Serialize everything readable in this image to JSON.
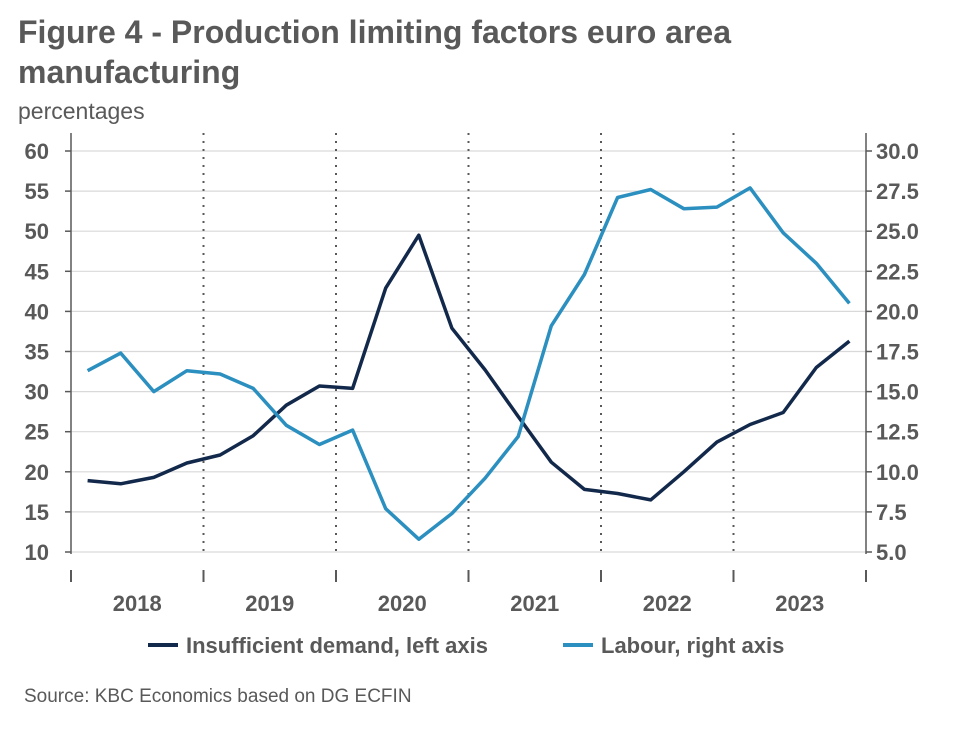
{
  "header": {
    "title": "Figure 4 - Production limiting factors euro area manufacturing",
    "subtitle": "percentages"
  },
  "footer": {
    "source": "Source: KBC Economics based on DG ECFIN"
  },
  "colors": {
    "demand": "#13294b",
    "labour": "#2b8fbf",
    "grid": "#d9d9d9",
    "axis": "#595959"
  },
  "chart_data": {
    "type": "line",
    "title": "Figure 4 - Production limiting factors euro area manufacturing",
    "subtitle": "percentages",
    "x": [
      "2018Q1",
      "2018Q2",
      "2018Q3",
      "2018Q4",
      "2019Q1",
      "2019Q2",
      "2019Q3",
      "2019Q4",
      "2020Q1",
      "2020Q2",
      "2020Q3",
      "2020Q4",
      "2021Q1",
      "2021Q2",
      "2021Q3",
      "2021Q4",
      "2022Q1",
      "2022Q2",
      "2022Q3",
      "2022Q4",
      "2023Q1",
      "2023Q2",
      "2023Q3",
      "2023Q4"
    ],
    "year_labels": [
      "2018",
      "2019",
      "2020",
      "2021",
      "2022",
      "2023"
    ],
    "left_axis": {
      "ylim": [
        10,
        60
      ],
      "ticks": [
        "60",
        "55",
        "50",
        "45",
        "40",
        "35",
        "30",
        "25",
        "20",
        "15",
        "10"
      ]
    },
    "right_axis": {
      "ylim": [
        5.0,
        30.0
      ],
      "ticks": [
        "30.0",
        "27.5",
        "25.0",
        "22.5",
        "20.0",
        "17.5",
        "15.0",
        "12.5",
        "10.0",
        "7.5",
        "5.0"
      ]
    },
    "grid": true,
    "legend_position": "bottom",
    "series": [
      {
        "name": "Insufficient demand, left axis",
        "axis": "left",
        "values": [
          18.9,
          18.5,
          19.3,
          21.1,
          22.1,
          24.5,
          28.3,
          30.7,
          30.4,
          42.9,
          49.5,
          37.9,
          32.7,
          26.9,
          21.2,
          17.8,
          17.3,
          16.5,
          20.0,
          23.7,
          25.9,
          27.4,
          33.0,
          36.3
        ]
      },
      {
        "name": "Labour, right axis",
        "axis": "right",
        "values": [
          16.3,
          17.4,
          15.0,
          16.3,
          16.1,
          15.2,
          12.9,
          11.7,
          12.6,
          7.7,
          5.8,
          7.4,
          9.6,
          12.2,
          19.1,
          22.3,
          27.1,
          27.6,
          26.4,
          26.5,
          27.7,
          24.9,
          23.0,
          20.5
        ]
      }
    ]
  }
}
